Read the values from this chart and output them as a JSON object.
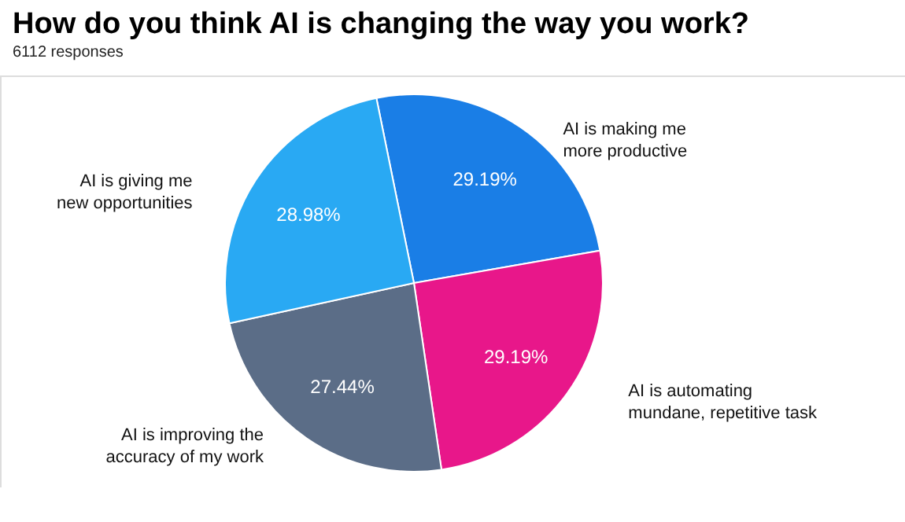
{
  "chart_data": {
    "type": "pie",
    "title": "How do you think AI is changing the way you work?",
    "subtitle": "6112 responses",
    "categories": [
      "AI is making me more productive",
      "AI is automating mundane, repetitive task",
      "AI is improving the accuracy of my work",
      "AI is giving me new opportunities"
    ],
    "values": [
      29.19,
      29.19,
      27.44,
      28.98
    ],
    "value_labels": [
      "29.19%",
      "29.19%",
      "27.44%",
      "28.98%"
    ],
    "colors": [
      "#1a7ee6",
      "#e8178a",
      "#5b6d87",
      "#29a9f3"
    ]
  }
}
